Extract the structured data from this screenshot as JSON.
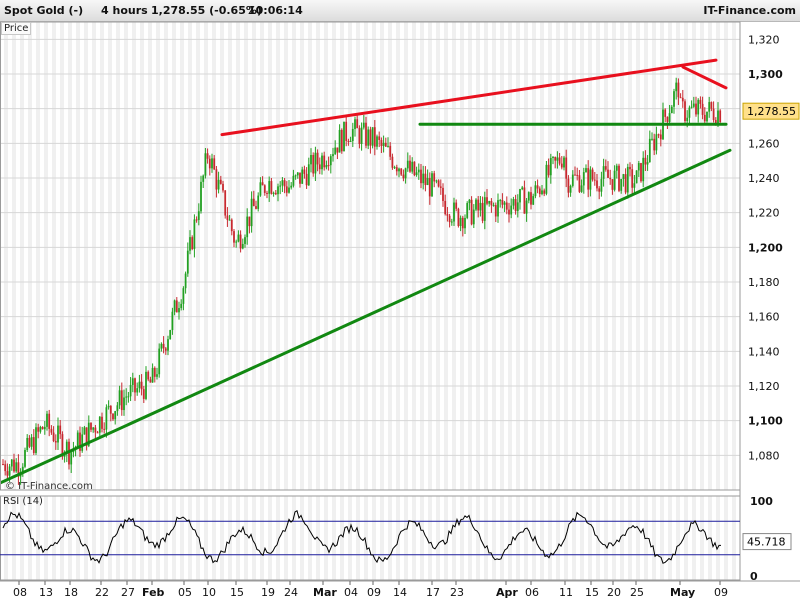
{
  "header": {
    "instrument": "Spot Gold (-)",
    "timeframe": "4 hours",
    "quote": "1,278.55 (-0.65%)",
    "time": "10:06:14",
    "brand": "IT-Finance.com"
  },
  "price_label": "Price",
  "watermark": "© IT-Finance.com",
  "rsi_label": "RSI (14)",
  "colors": {
    "up": "#22a022",
    "down": "#c8282f",
    "resistance": "#e8101e",
    "support": "#118811",
    "rsi_band": "#1c1c9c"
  },
  "chart_data": [
    {
      "type": "candlestick",
      "title": "Spot Gold (-)",
      "ylim": [
        1060,
        1330
      ],
      "yticks": [
        1080,
        1100,
        1120,
        1140,
        1160,
        1180,
        1200,
        1220,
        1240,
        1260,
        1280,
        1300,
        1320
      ],
      "ytick_labels": [
        "1,080",
        "1,100",
        "1,120",
        "1,140",
        "1,160",
        "1,180",
        "1,200",
        "1,220",
        "1,240",
        "1,260",
        "1,280",
        "1,300",
        "1,320"
      ],
      "x_ticks": [
        "08",
        "13",
        "18",
        "22",
        "27",
        "Feb",
        "05",
        "10",
        "15",
        "19",
        "24",
        "Mar",
        "04",
        "09",
        "14",
        "17",
        "23",
        "Apr",
        "06",
        "11",
        "15",
        "20",
        "25",
        "May",
        "09"
      ],
      "current_value": 1278.55,
      "current_label": "1,278.55",
      "close_path": [
        {
          "x": "08",
          "y": 1075
        },
        {
          "x": "13",
          "y": 1098
        },
        {
          "x": "18",
          "y": 1082
        },
        {
          "x": "22",
          "y": 1101
        },
        {
          "x": "27",
          "y": 1115
        },
        {
          "x": "Feb",
          "y": 1122
        },
        {
          "x": "05",
          "y": 1180
        },
        {
          "x": "10",
          "y": 1255
        },
        {
          "x": "15",
          "y": 1202
        },
        {
          "x": "19",
          "y": 1238
        },
        {
          "x": "24",
          "y": 1235
        },
        {
          "x": "Mar",
          "y": 1252
        },
        {
          "x": "04",
          "y": 1268
        },
        {
          "x": "09",
          "y": 1262
        },
        {
          "x": "14",
          "y": 1248
        },
        {
          "x": "17",
          "y": 1235
        },
        {
          "x": "23",
          "y": 1218
        },
        {
          "x": "Apr",
          "y": 1225
        },
        {
          "x": "06",
          "y": 1228
        },
        {
          "x": "11",
          "y": 1255
        },
        {
          "x": "15",
          "y": 1235
        },
        {
          "x": "20",
          "y": 1240
        },
        {
          "x": "25",
          "y": 1238
        },
        {
          "x": "May",
          "y": 1295
        },
        {
          "x": "09",
          "y": 1278.55
        }
      ],
      "trendlines": [
        {
          "name": "resistance",
          "color": "#e8101e",
          "from": {
            "x": "10",
            "y": 1265
          },
          "to": {
            "x": "09",
            "y": 1308
          }
        },
        {
          "name": "resistance-short",
          "color": "#e8101e",
          "from": {
            "x": "May",
            "y": 1304
          },
          "to": {
            "x": "09",
            "y": 1292
          }
        },
        {
          "name": "neckline",
          "color": "#118811",
          "from": {
            "x": "17",
            "y": 1271
          },
          "to": {
            "x": "09",
            "y": 1271
          }
        },
        {
          "name": "support",
          "color": "#118811",
          "from": {
            "x": "08",
            "y": 1064
          },
          "to": {
            "x": "09",
            "y": 1256
          }
        }
      ]
    },
    {
      "type": "line",
      "title": "RSI (14)",
      "ylim": [
        0,
        100
      ],
      "yticks": [
        0,
        100
      ],
      "ytick_labels": [
        "0",
        "100"
      ],
      "bands": [
        30,
        70
      ],
      "current_value": 45.718,
      "current_label": "45.718"
    }
  ]
}
